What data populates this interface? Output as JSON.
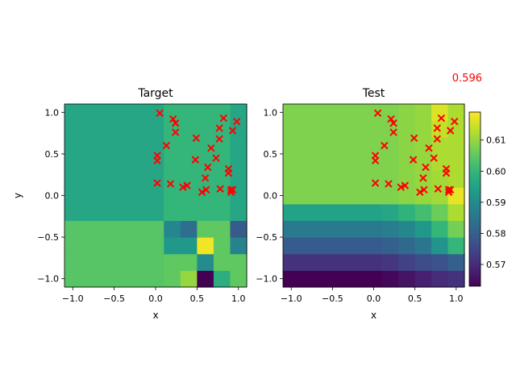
{
  "score_label": "0.596",
  "colors": {
    "marker": "#ff0000",
    "score": "#ff0000"
  },
  "chart_data": [
    {
      "type": "heatmap",
      "title": "Target",
      "xlabel": "x",
      "ylabel": "y",
      "xlim": [
        -1.1,
        1.1
      ],
      "ylim": [
        -1.1,
        1.1
      ],
      "x_edges": [
        -1.1,
        -0.9,
        -0.7,
        -0.5,
        -0.3,
        -0.1,
        0.1,
        0.3,
        0.5,
        0.7,
        0.9,
        1.1
      ],
      "y_edges": [
        -1.1,
        -0.9,
        -0.7,
        -0.5,
        -0.3,
        -0.1,
        0.1,
        0.3,
        0.5,
        0.7,
        0.9,
        1.1
      ],
      "xticks": [
        "−1.0",
        "−0.5",
        "0.0",
        "0.5",
        "1.0"
      ],
      "yticks": [
        "−1.0",
        "−0.5",
        "0.0",
        "0.5",
        "1.0"
      ],
      "colormap": "viridis",
      "grid": false,
      "values_rows_bottom_to_top": [
        [
          0.604,
          0.604,
          0.604,
          0.604,
          0.604,
          0.604,
          0.605,
          0.61,
          0.562,
          0.598,
          0.605
        ],
        [
          0.604,
          0.604,
          0.604,
          0.604,
          0.604,
          0.604,
          0.605,
          0.605,
          0.59,
          0.605,
          0.605
        ],
        [
          0.604,
          0.604,
          0.604,
          0.604,
          0.604,
          0.604,
          0.593,
          0.593,
          0.618,
          0.605,
          0.588
        ],
        [
          0.604,
          0.604,
          0.604,
          0.604,
          0.604,
          0.604,
          0.589,
          0.583,
          0.605,
          0.605,
          0.579
        ],
        [
          0.596,
          0.596,
          0.596,
          0.596,
          0.596,
          0.596,
          0.6,
          0.6,
          0.6,
          0.6,
          0.596
        ],
        [
          0.596,
          0.596,
          0.596,
          0.596,
          0.596,
          0.596,
          0.6,
          0.6,
          0.6,
          0.6,
          0.596
        ],
        [
          0.596,
          0.596,
          0.596,
          0.596,
          0.596,
          0.596,
          0.6,
          0.6,
          0.6,
          0.6,
          0.596
        ],
        [
          0.596,
          0.596,
          0.596,
          0.596,
          0.596,
          0.596,
          0.6,
          0.6,
          0.6,
          0.6,
          0.596
        ],
        [
          0.596,
          0.596,
          0.596,
          0.596,
          0.596,
          0.596,
          0.6,
          0.6,
          0.6,
          0.6,
          0.596
        ],
        [
          0.596,
          0.596,
          0.596,
          0.596,
          0.596,
          0.596,
          0.6,
          0.6,
          0.6,
          0.6,
          0.596
        ],
        [
          0.596,
          0.596,
          0.596,
          0.596,
          0.596,
          0.596,
          0.6,
          0.6,
          0.6,
          0.6,
          0.596
        ]
      ],
      "scatter": {
        "marker": "x",
        "points": [
          [
            0.05,
            0.99
          ],
          [
            0.21,
            0.92
          ],
          [
            0.24,
            0.87
          ],
          [
            0.24,
            0.76
          ],
          [
            0.02,
            0.48
          ],
          [
            0.02,
            0.42
          ],
          [
            0.13,
            0.6
          ],
          [
            0.49,
            0.69
          ],
          [
            0.48,
            0.43
          ],
          [
            0.67,
            0.57
          ],
          [
            0.73,
            0.45
          ],
          [
            0.63,
            0.34
          ],
          [
            0.82,
            0.93
          ],
          [
            0.77,
            0.81
          ],
          [
            0.93,
            0.78
          ],
          [
            0.98,
            0.89
          ],
          [
            0.77,
            0.68
          ],
          [
            0.02,
            0.15
          ],
          [
            0.18,
            0.14
          ],
          [
            0.33,
            0.1
          ],
          [
            0.38,
            0.12
          ],
          [
            0.6,
            0.21
          ],
          [
            0.56,
            0.04
          ],
          [
            0.61,
            0.07
          ],
          [
            0.78,
            0.08
          ],
          [
            0.88,
            0.32
          ],
          [
            0.88,
            0.27
          ],
          [
            0.91,
            0.07
          ],
          [
            0.91,
            0.04
          ],
          [
            0.93,
            0.07
          ]
        ]
      }
    },
    {
      "type": "heatmap",
      "title": "Test",
      "xlabel": "x",
      "ylabel": "",
      "xlim": [
        -1.1,
        1.1
      ],
      "ylim": [
        -1.1,
        1.1
      ],
      "x_edges": [
        -1.1,
        -0.9,
        -0.7,
        -0.5,
        -0.3,
        -0.1,
        0.1,
        0.3,
        0.5,
        0.7,
        0.9,
        1.1
      ],
      "y_edges": [
        -1.1,
        -0.9,
        -0.7,
        -0.5,
        -0.3,
        -0.1,
        0.1,
        0.3,
        0.5,
        0.7,
        0.9,
        1.1
      ],
      "xticks": [
        "−1.0",
        "−0.5",
        "0.0",
        "0.5",
        "1.0"
      ],
      "yticks": [
        "−1.0",
        "−0.5",
        "0.0",
        "0.5",
        "1.0"
      ],
      "colormap": "viridis",
      "grid": false,
      "values_rows_bottom_to_top": [
        [
          0.563,
          0.563,
          0.563,
          0.563,
          0.563,
          0.563,
          0.564,
          0.566,
          0.568,
          0.57,
          0.571
        ],
        [
          0.571,
          0.571,
          0.571,
          0.571,
          0.571,
          0.571,
          0.572,
          0.574,
          0.576,
          0.577,
          0.58
        ],
        [
          0.579,
          0.579,
          0.579,
          0.579,
          0.579,
          0.579,
          0.58,
          0.582,
          0.585,
          0.592,
          0.6
        ],
        [
          0.586,
          0.586,
          0.586,
          0.586,
          0.586,
          0.586,
          0.587,
          0.589,
          0.593,
          0.6,
          0.607
        ],
        [
          0.595,
          0.595,
          0.595,
          0.595,
          0.595,
          0.595,
          0.596,
          0.599,
          0.602,
          0.606,
          0.612
        ],
        [
          0.608,
          0.608,
          0.608,
          0.608,
          0.608,
          0.608,
          0.608,
          0.609,
          0.61,
          0.611,
          0.617
        ],
        [
          0.608,
          0.608,
          0.608,
          0.608,
          0.608,
          0.608,
          0.608,
          0.609,
          0.61,
          0.611,
          0.612
        ],
        [
          0.608,
          0.608,
          0.608,
          0.608,
          0.608,
          0.608,
          0.608,
          0.609,
          0.61,
          0.612,
          0.612
        ],
        [
          0.608,
          0.608,
          0.608,
          0.608,
          0.608,
          0.608,
          0.608,
          0.609,
          0.61,
          0.612,
          0.612
        ],
        [
          0.608,
          0.608,
          0.608,
          0.608,
          0.608,
          0.608,
          0.608,
          0.609,
          0.61,
          0.614,
          0.612
        ],
        [
          0.608,
          0.608,
          0.608,
          0.608,
          0.608,
          0.608,
          0.608,
          0.609,
          0.61,
          0.616,
          0.612
        ]
      ],
      "scatter": {
        "marker": "x",
        "points": [
          [
            0.05,
            0.99
          ],
          [
            0.21,
            0.92
          ],
          [
            0.24,
            0.87
          ],
          [
            0.24,
            0.76
          ],
          [
            0.02,
            0.48
          ],
          [
            0.02,
            0.42
          ],
          [
            0.13,
            0.6
          ],
          [
            0.49,
            0.69
          ],
          [
            0.48,
            0.43
          ],
          [
            0.67,
            0.57
          ],
          [
            0.73,
            0.45
          ],
          [
            0.63,
            0.34
          ],
          [
            0.82,
            0.93
          ],
          [
            0.77,
            0.81
          ],
          [
            0.93,
            0.78
          ],
          [
            0.98,
            0.89
          ],
          [
            0.77,
            0.68
          ],
          [
            0.02,
            0.15
          ],
          [
            0.18,
            0.14
          ],
          [
            0.33,
            0.1
          ],
          [
            0.38,
            0.12
          ],
          [
            0.6,
            0.21
          ],
          [
            0.56,
            0.04
          ],
          [
            0.61,
            0.07
          ],
          [
            0.78,
            0.08
          ],
          [
            0.88,
            0.32
          ],
          [
            0.88,
            0.27
          ],
          [
            0.91,
            0.07
          ],
          [
            0.91,
            0.04
          ],
          [
            0.93,
            0.07
          ]
        ]
      },
      "colorbar": {
        "vmin": 0.563,
        "vmax": 0.619,
        "ticks": [
          0.57,
          0.58,
          0.59,
          0.6,
          0.61
        ],
        "tick_labels": [
          "0.57",
          "0.58",
          "0.59",
          "0.60",
          "0.61"
        ]
      }
    }
  ]
}
